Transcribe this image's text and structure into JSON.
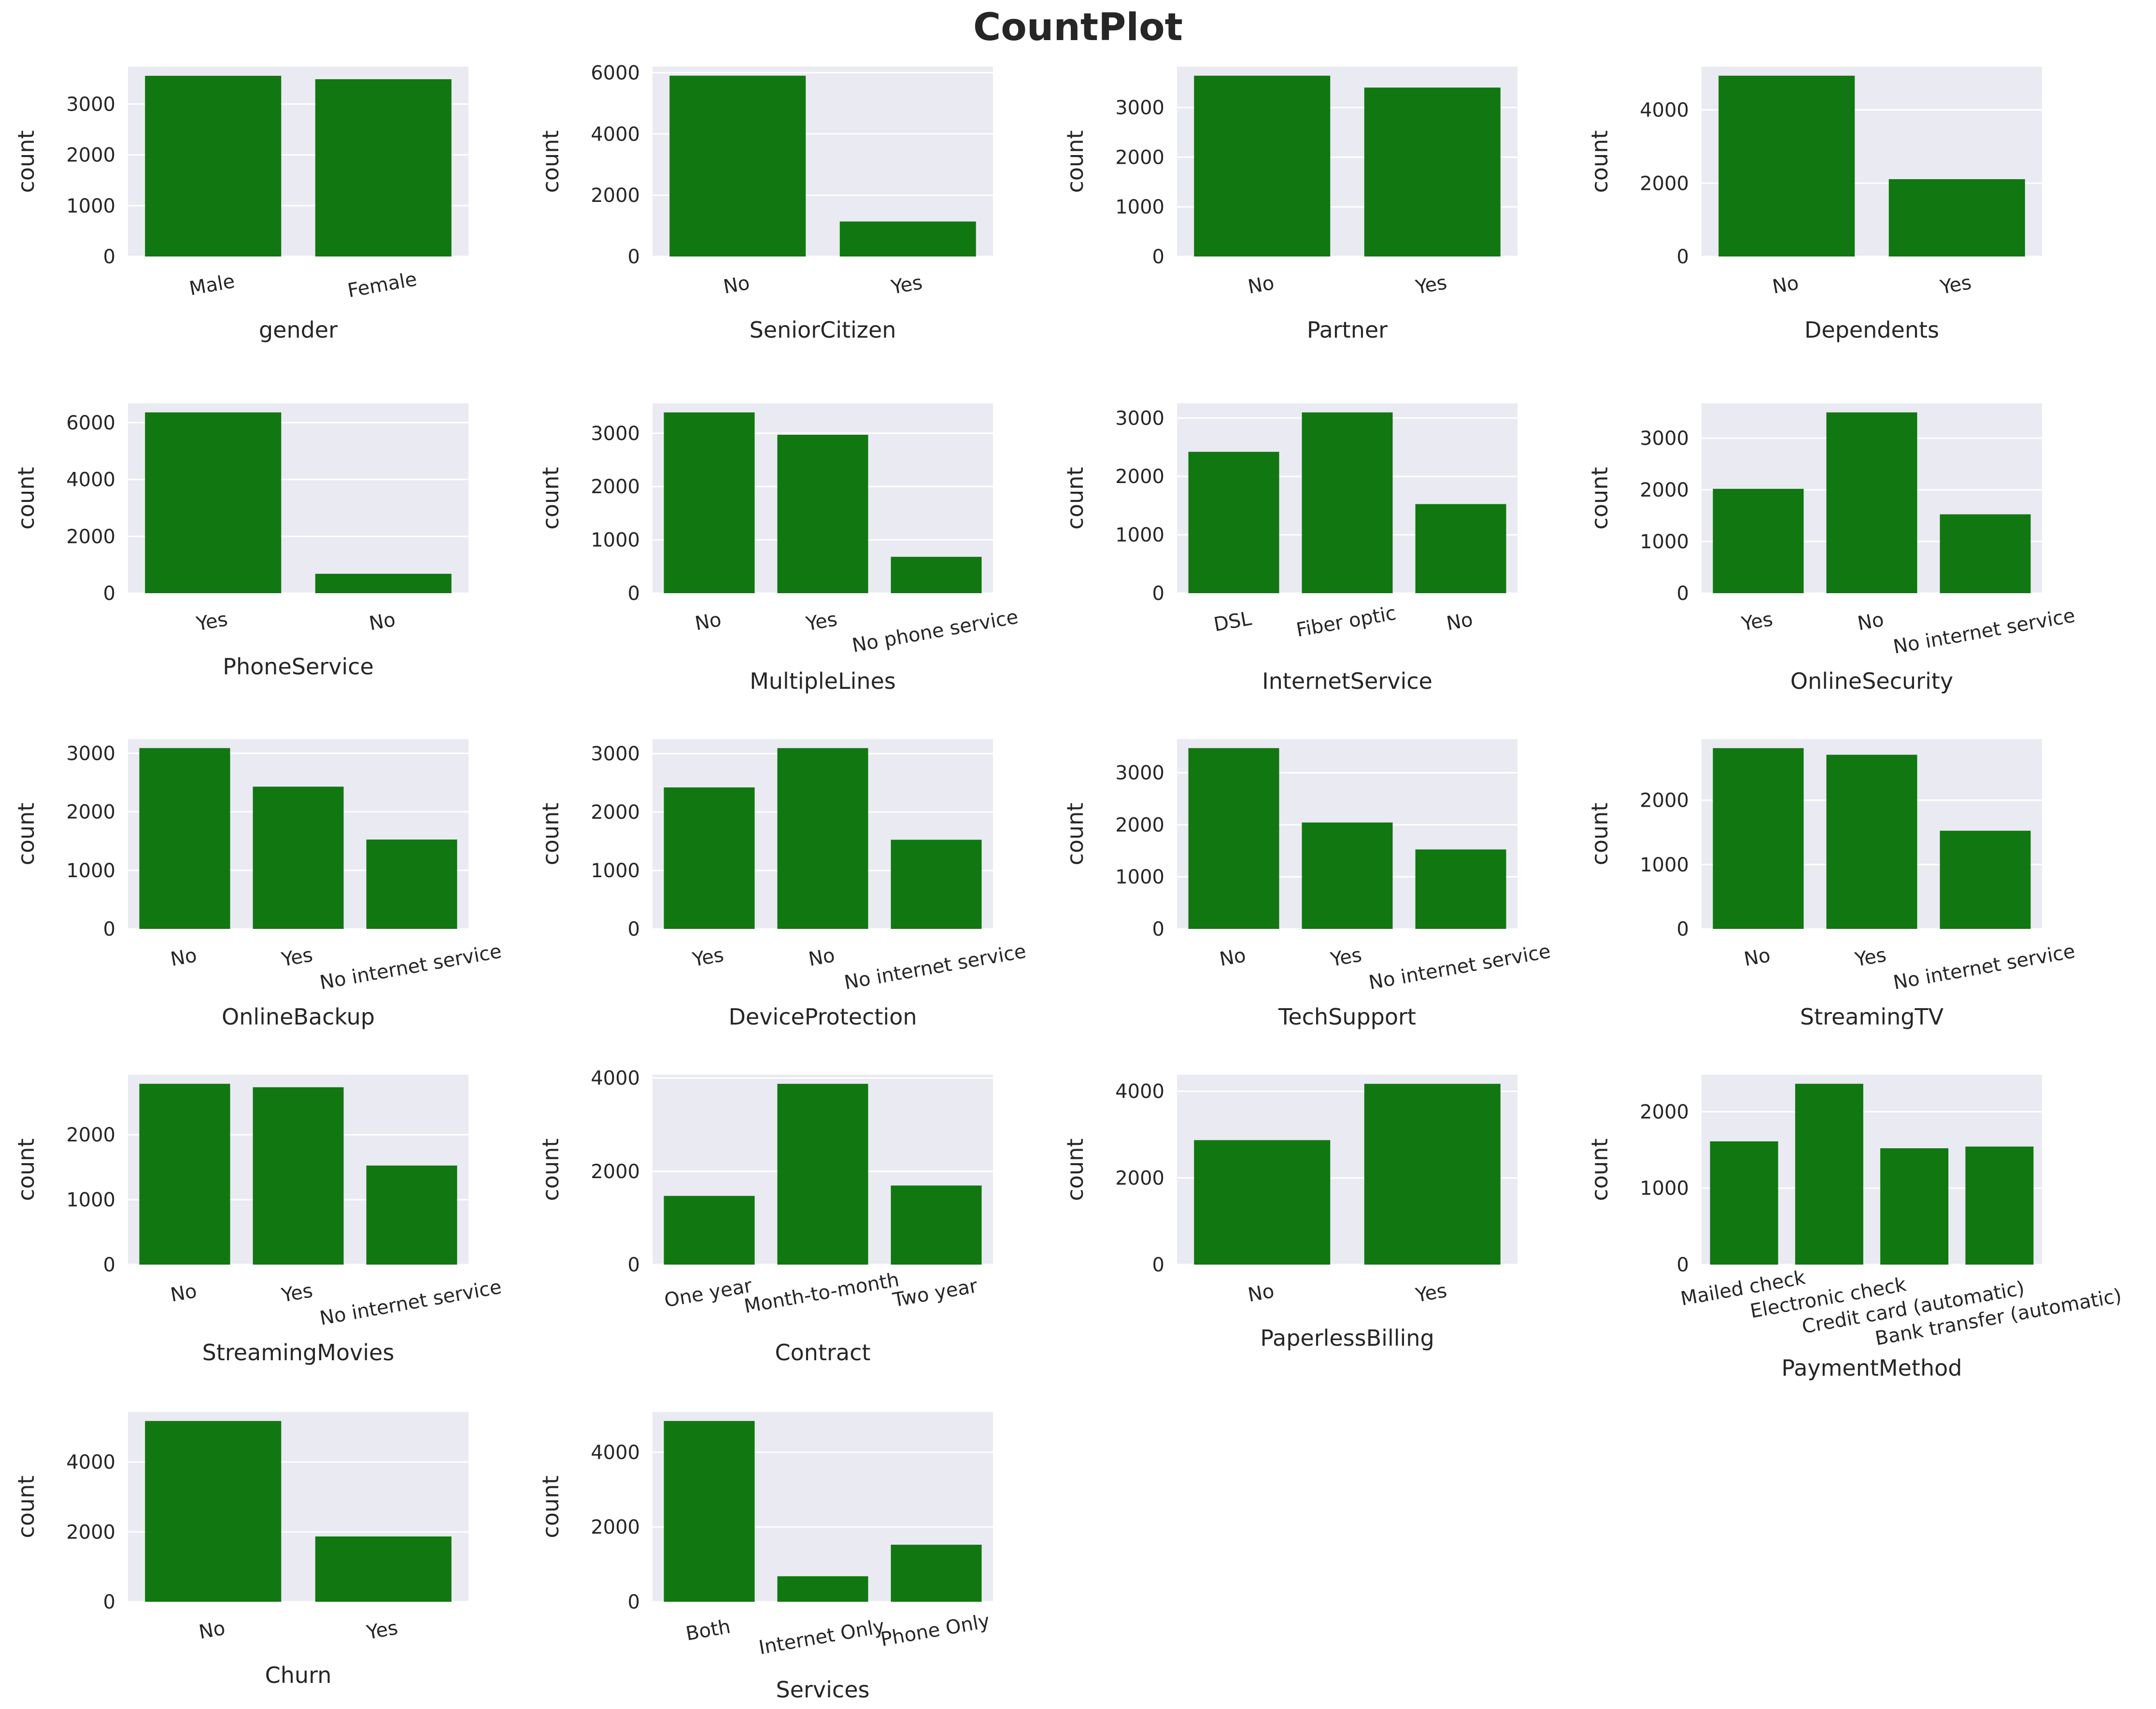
{
  "figure": {
    "title": "CountPlot",
    "bar_color": "#117711",
    "axes_bg": "#eaeaf2",
    "grid_color": "#ffffff",
    "text_color": "#262626"
  },
  "chart_data": [
    {
      "type": "bar",
      "xlabel": "gender",
      "ylabel": "count",
      "categories": [
        "Male",
        "Female"
      ],
      "values": [
        3555,
        3488
      ],
      "yticks": [
        0,
        1000,
        2000,
        3000
      ],
      "ylim": [
        0,
        3735
      ]
    },
    {
      "type": "bar",
      "xlabel": "SeniorCitizen",
      "ylabel": "count",
      "categories": [
        "No",
        "Yes"
      ],
      "values": [
        5901,
        1142
      ],
      "yticks": [
        0,
        2000,
        4000,
        6000
      ],
      "ylim": [
        0,
        6196
      ]
    },
    {
      "type": "bar",
      "xlabel": "Partner",
      "ylabel": "count",
      "categories": [
        "No",
        "Yes"
      ],
      "values": [
        3641,
        3402
      ],
      "yticks": [
        0,
        1000,
        2000,
        3000
      ],
      "ylim": [
        0,
        3823
      ]
    },
    {
      "type": "bar",
      "xlabel": "Dependents",
      "ylabel": "count",
      "categories": [
        "No",
        "Yes"
      ],
      "values": [
        4933,
        2110
      ],
      "yticks": [
        0,
        2000,
        4000
      ],
      "ylim": [
        0,
        5180
      ]
    },
    {
      "type": "bar",
      "xlabel": "PhoneService",
      "ylabel": "count",
      "categories": [
        "Yes",
        "No"
      ],
      "values": [
        6361,
        682
      ],
      "yticks": [
        0,
        2000,
        4000,
        6000
      ],
      "ylim": [
        0,
        6679
      ]
    },
    {
      "type": "bar",
      "xlabel": "MultipleLines",
      "ylabel": "count",
      "categories": [
        "No",
        "Yes",
        "No phone service"
      ],
      "values": [
        3390,
        2971,
        682
      ],
      "yticks": [
        0,
        1000,
        2000,
        3000
      ],
      "ylim": [
        0,
        3560
      ]
    },
    {
      "type": "bar",
      "xlabel": "InternetService",
      "ylabel": "count",
      "categories": [
        "DSL",
        "Fiber optic",
        "No"
      ],
      "values": [
        2421,
        3096,
        1526
      ],
      "yticks": [
        0,
        1000,
        2000,
        3000
      ],
      "ylim": [
        0,
        3251
      ]
    },
    {
      "type": "bar",
      "xlabel": "OnlineSecurity",
      "ylabel": "count",
      "categories": [
        "Yes",
        "No",
        "No internet service"
      ],
      "values": [
        2019,
        3498,
        1526
      ],
      "yticks": [
        0,
        1000,
        2000,
        3000
      ],
      "ylim": [
        0,
        3673
      ]
    },
    {
      "type": "bar",
      "xlabel": "OnlineBackup",
      "ylabel": "count",
      "categories": [
        "No",
        "Yes",
        "No internet service"
      ],
      "values": [
        3088,
        2429,
        1526
      ],
      "yticks": [
        0,
        1000,
        2000,
        3000
      ],
      "ylim": [
        0,
        3242
      ]
    },
    {
      "type": "bar",
      "xlabel": "DeviceProtection",
      "ylabel": "count",
      "categories": [
        "Yes",
        "No",
        "No internet service"
      ],
      "values": [
        2422,
        3095,
        1526
      ],
      "yticks": [
        0,
        1000,
        2000,
        3000
      ],
      "ylim": [
        0,
        3250
      ]
    },
    {
      "type": "bar",
      "xlabel": "TechSupport",
      "ylabel": "count",
      "categories": [
        "No",
        "Yes",
        "No internet service"
      ],
      "values": [
        3473,
        2044,
        1526
      ],
      "yticks": [
        0,
        1000,
        2000,
        3000
      ],
      "ylim": [
        0,
        3647
      ]
    },
    {
      "type": "bar",
      "xlabel": "StreamingTV",
      "ylabel": "count",
      "categories": [
        "No",
        "Yes",
        "No internet service"
      ],
      "values": [
        2810,
        2707,
        1526
      ],
      "yticks": [
        0,
        1000,
        2000
      ],
      "ylim": [
        0,
        2951
      ]
    },
    {
      "type": "bar",
      "xlabel": "StreamingMovies",
      "ylabel": "count",
      "categories": [
        "No",
        "Yes",
        "No internet service"
      ],
      "values": [
        2785,
        2732,
        1526
      ],
      "yticks": [
        0,
        1000,
        2000
      ],
      "ylim": [
        0,
        2924
      ]
    },
    {
      "type": "bar",
      "xlabel": "Contract",
      "ylabel": "count",
      "categories": [
        "One year",
        "Month-to-month",
        "Two year"
      ],
      "values": [
        1473,
        3875,
        1695
      ],
      "yticks": [
        0,
        2000,
        4000
      ],
      "ylim": [
        0,
        4069
      ]
    },
    {
      "type": "bar",
      "xlabel": "PaperlessBilling",
      "ylabel": "count",
      "categories": [
        "No",
        "Yes"
      ],
      "values": [
        2872,
        4171
      ],
      "yticks": [
        0,
        2000,
        4000
      ],
      "ylim": [
        0,
        4380
      ]
    },
    {
      "type": "bar",
      "xlabel": "PaymentMethod",
      "ylabel": "count",
      "categories": [
        "Mailed check",
        "Electronic check",
        "Credit card (automatic)",
        "Bank transfer (automatic)"
      ],
      "values": [
        1612,
        2365,
        1522,
        1544
      ],
      "yticks": [
        0,
        1000,
        2000
      ],
      "ylim": [
        0,
        2483
      ]
    },
    {
      "type": "bar",
      "xlabel": "Churn",
      "ylabel": "count",
      "categories": [
        "No",
        "Yes"
      ],
      "values": [
        5174,
        1869
      ],
      "yticks": [
        0,
        2000,
        4000
      ],
      "ylim": [
        0,
        5433
      ]
    },
    {
      "type": "bar",
      "xlabel": "Services",
      "ylabel": "count",
      "categories": [
        "Both",
        "Internet Only",
        "Phone Only"
      ],
      "values": [
        4835,
        682,
        1526
      ],
      "yticks": [
        0,
        2000,
        4000
      ],
      "ylim": [
        0,
        5077
      ]
    }
  ]
}
